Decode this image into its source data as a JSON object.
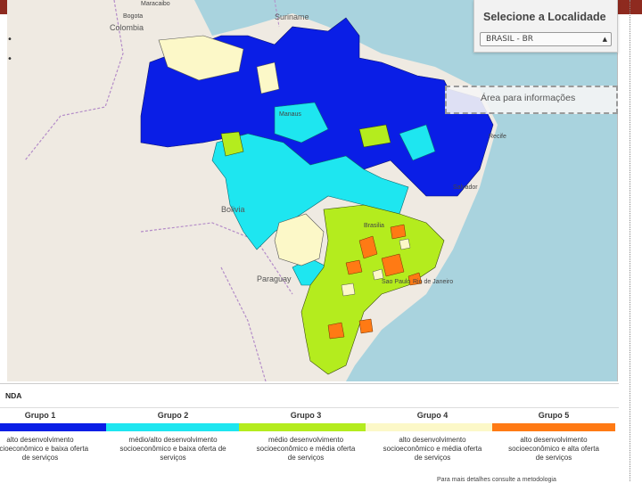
{
  "selector": {
    "title": "Selecione a Localidade",
    "selected_value": "BRASIL - BR"
  },
  "info_panel": {
    "label": "Área para informações"
  },
  "map": {
    "country_labels": [
      "Suriname",
      "Colombia",
      "Bolivia",
      "Paraguay"
    ],
    "city_labels": [
      "Bogota",
      "Maracaibo",
      "Manaus",
      "Brasilia",
      "Sao Paulo",
      "Rio de Janeiro",
      "Salvador",
      "Recife"
    ]
  },
  "legend": {
    "title": "NDA",
    "groups": [
      {
        "name": "Grupo 1",
        "color": "#0a1ee6",
        "desc": [
          "alto desenvolvimento",
          "socioeconômico e baixa oferta",
          "de serviços"
        ]
      },
      {
        "name": "Grupo 2",
        "color": "#1ee6f0",
        "desc": [
          "médio/alto desenvolvimento",
          "socioeconômico e baixa oferta de",
          "serviços"
        ]
      },
      {
        "name": "Grupo 3",
        "color": "#b4ec1e",
        "desc": [
          "médio desenvolvimento",
          "socioeconômico e média oferta",
          "de serviços"
        ]
      },
      {
        "name": "Grupo 4",
        "color": "#fcf8c8",
        "desc": [
          "alto desenvolvimento",
          "socioeconômico e média oferta",
          "de serviços"
        ]
      },
      {
        "name": "Grupo 5",
        "color": "#ff7a14",
        "desc": [
          "alto desenvolvimento",
          "socioeconômico e alta oferta",
          "de serviços"
        ]
      }
    ]
  },
  "footer": "Para mais detalhes consulte a metodologia"
}
